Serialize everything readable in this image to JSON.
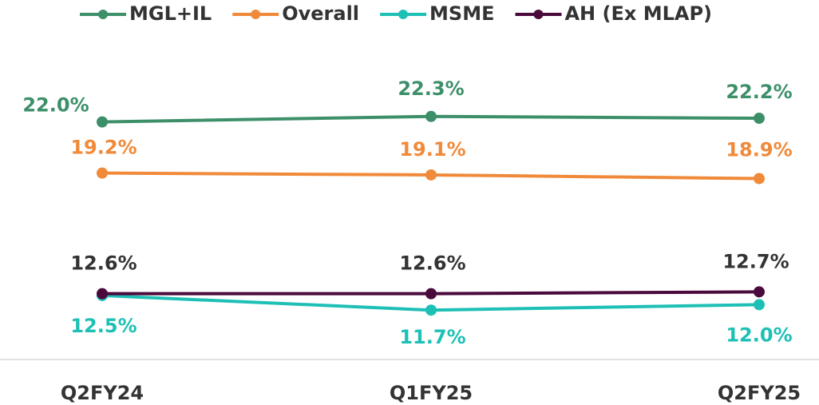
{
  "chart_data": {
    "type": "line",
    "categories": [
      "Q2FY24",
      "Q1FY25",
      "Q2FY25"
    ],
    "series": [
      {
        "name": "MGL+IL",
        "color": "#3d8f6a",
        "values": [
          22.0,
          22.3,
          22.2
        ],
        "value_labels": [
          "22.0%",
          "22.3%",
          "22.2%"
        ]
      },
      {
        "name": "Overall",
        "color": "#f08a3a",
        "values": [
          19.2,
          19.1,
          18.9
        ],
        "value_labels": [
          "19.2%",
          "19.1%",
          "18.9%"
        ]
      },
      {
        "name": "MSME",
        "color": "#1ec0b6",
        "values": [
          12.5,
          11.7,
          12.0
        ],
        "value_labels": [
          "12.5%",
          "11.7%",
          "12.0%"
        ]
      },
      {
        "name": "AH (Ex MLAP)",
        "color": "#4a0a3c",
        "values": [
          12.6,
          12.6,
          12.7
        ],
        "value_labels": [
          "12.6%",
          "12.6%",
          "12.7%"
        ]
      }
    ],
    "ylim": [
      9,
      25
    ],
    "legend": "top"
  }
}
